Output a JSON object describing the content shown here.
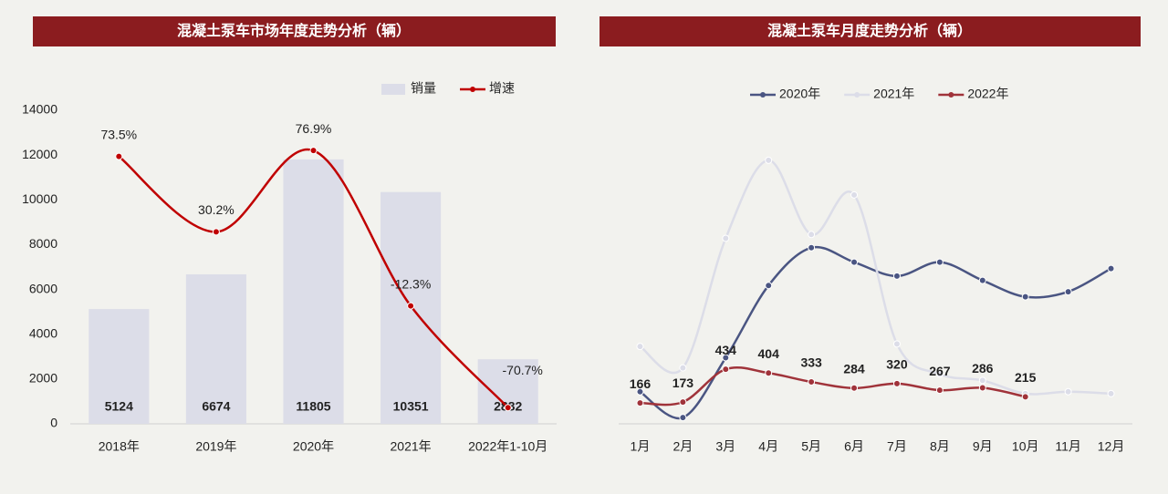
{
  "chart_data": [
    {
      "type": "bar",
      "title": "混凝土泵车市场年度走势分析（辆）",
      "categories": [
        "2018年",
        "2019年",
        "2020年",
        "2021年",
        "2022年1-10月"
      ],
      "series": [
        {
          "name": "销量",
          "type": "bar",
          "color": "#dcdde8",
          "values": [
            5124,
            6674,
            11805,
            10351,
            2882
          ]
        },
        {
          "name": "增速",
          "type": "line",
          "axis": "y2",
          "color": "#c00000",
          "values": [
            73.5,
            30.2,
            76.9,
            -12.3,
            -70.7
          ],
          "value_labels": [
            "73.5%",
            "30.2%",
            "76.9%",
            "-12.3%",
            "-70.7%"
          ]
        }
      ],
      "ylim": [
        0,
        14000
      ],
      "yticks": [
        0,
        2000,
        4000,
        6000,
        8000,
        10000,
        12000,
        14000
      ],
      "y2lim": [
        -80,
        100
      ],
      "legend": "top"
    },
    {
      "type": "line",
      "title": "混凝土泵车月度走势分析（辆）",
      "categories": [
        "1月",
        "2月",
        "3月",
        "4月",
        "5月",
        "6月",
        "7月",
        "8月",
        "9月",
        "10月",
        "11月",
        "12月"
      ],
      "series": [
        {
          "name": "2020年",
          "color": "#4a5582",
          "values": [
            255,
            50,
            525,
            1100,
            1400,
            1285,
            1175,
            1285,
            1140,
            1010,
            1050,
            1235
          ]
        },
        {
          "name": "2021年",
          "color": "#dcdde8",
          "values": [
            615,
            445,
            1475,
            2095,
            1505,
            1820,
            635,
            395,
            345,
            240,
            255,
            240
          ]
        },
        {
          "name": "2022年",
          "color": "#a0333a",
          "values": [
            166,
            173,
            434,
            404,
            333,
            284,
            320,
            267,
            286,
            215,
            null,
            null
          ],
          "show_labels": true
        }
      ],
      "ylim": [
        0,
        2500
      ],
      "legend": "top"
    }
  ]
}
